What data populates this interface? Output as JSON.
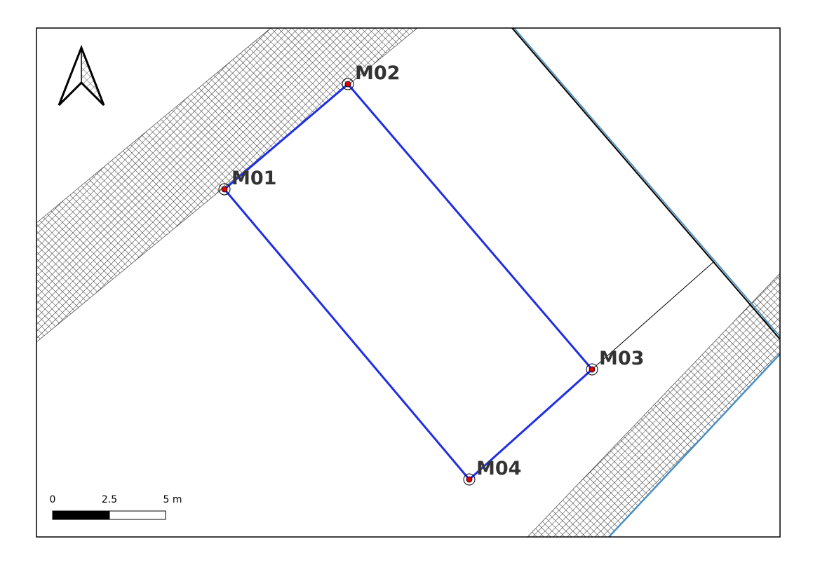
{
  "map": {
    "points": [
      {
        "id": "M01",
        "label": "M01"
      },
      {
        "id": "M02",
        "label": "M02"
      },
      {
        "id": "M03",
        "label": "M03"
      },
      {
        "id": "M04",
        "label": "M04"
      }
    ],
    "scale_bar": {
      "labels": [
        "0",
        "2.5",
        "5 m"
      ]
    },
    "north_arrow": {
      "icon": "north-arrow-icon"
    },
    "colors": {
      "parcel_outline": "#1f2fe6",
      "point_fill": "#e00000",
      "label_text": "#333333",
      "hatch": "#2b2b2b",
      "boundary_blue": "#4a8fc0",
      "frame": "#000000"
    }
  }
}
